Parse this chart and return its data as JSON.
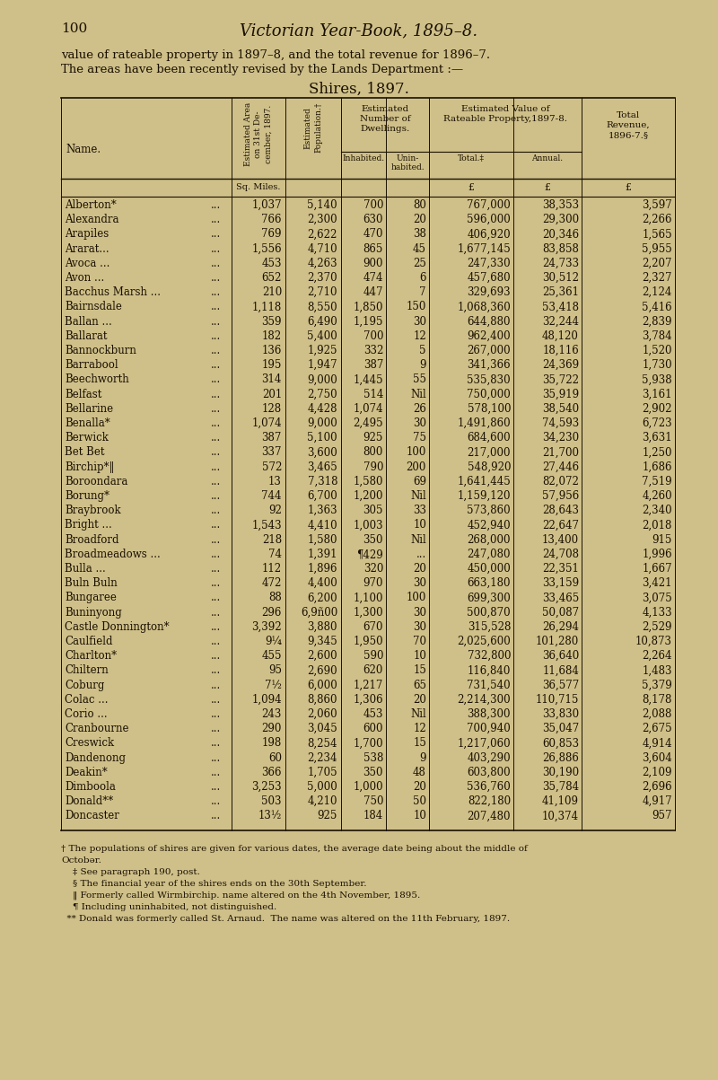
{
  "page_num": "100",
  "page_title": "Victorian Year-Book, 1895–8.",
  "intro_line1": "value of rateable property in 1897–8, and the total revenue for 1896–7.",
  "intro_line2": "The areas have been recently revised by the Lands Department :—",
  "table_title": "Shires, 1897.",
  "bg_color": "#cfc08a",
  "text_color": "#1a1000",
  "line_color": "#1a1000",
  "rows": [
    [
      "Alberton*",
      "...",
      "1,037",
      "5,140",
      "700",
      "80",
      "767,000",
      "38,353",
      "3,597"
    ],
    [
      "Alexandra",
      "...",
      "766",
      "2,300",
      "630",
      "20",
      "596,000",
      "29,300",
      "2,266"
    ],
    [
      "Arapiles",
      "...",
      "769",
      "2,622",
      "470",
      "38",
      "406,920",
      "20,346",
      "1,565"
    ],
    [
      "Ararat...",
      "...",
      "1,556",
      "4,710",
      "865",
      "45",
      "1,677,145",
      "83,858",
      "5,955"
    ],
    [
      "Avoca ...",
      "...",
      "453",
      "4,263",
      "900",
      "25",
      "247,330",
      "24,733",
      "2,207"
    ],
    [
      "Avon ...",
      "...",
      "652",
      "2,370",
      "474",
      "6",
      "457,680",
      "30,512",
      "2,327"
    ],
    [
      "Bacchus Marsh ...",
      "...",
      "210",
      "2,710",
      "447",
      "7",
      "329,693",
      "25,361",
      "2,124"
    ],
    [
      "Bairnsdale",
      "...",
      "1,118",
      "8,550",
      "1,850",
      "150",
      "1,068,360",
      "53,418",
      "5,416"
    ],
    [
      "Ballan ...",
      "...",
      "359",
      "6,490",
      "1,195",
      "30",
      "644,880",
      "32,244",
      "2,839"
    ],
    [
      "Ballarat",
      "...",
      "182",
      "5,400",
      "700",
      "12",
      "962,400",
      "48,120",
      "3,784"
    ],
    [
      "Bannockburn",
      "...",
      "136",
      "1,925",
      "332",
      "5",
      "267,000",
      "18,116",
      "1,520"
    ],
    [
      "Barrabool",
      "...",
      "195",
      "1,947",
      "387",
      "9",
      "341,366",
      "24,369",
      "1,730"
    ],
    [
      "Beechworth",
      "...",
      "314",
      "9,000",
      "1,445",
      "55",
      "535,830",
      "35,722",
      "5,938"
    ],
    [
      "Belfast",
      "...",
      "201",
      "2,750",
      "514",
      "Nil",
      "750,000",
      "35,919",
      "3,161"
    ],
    [
      "Bellarine",
      "...",
      "128",
      "4,428",
      "1,074",
      "26",
      "578,100",
      "38,540",
      "2,902"
    ],
    [
      "Benalla*",
      "...",
      "1,074",
      "9,000",
      "2,495",
      "30",
      "1,491,860",
      "74,593",
      "6,723"
    ],
    [
      "Berwick",
      "...",
      "387",
      "5,100",
      "925",
      "75",
      "684,600",
      "34,230",
      "3,631"
    ],
    [
      "Bet Bet",
      "...",
      "337",
      "3,600",
      "800",
      "100",
      "217,000",
      "21,700",
      "1,250"
    ],
    [
      "Birchip*‖",
      "...",
      "572",
      "3,465",
      "790",
      "200",
      "548,920",
      "27,446",
      "1,686"
    ],
    [
      "Boroondara",
      "...",
      "13",
      "7,318",
      "1,580",
      "69",
      "1,641,445",
      "82,072",
      "7,519"
    ],
    [
      "Borung*",
      "...",
      "744",
      "6,700",
      "1,200",
      "Nil",
      "1,159,120",
      "57,956",
      "4,260"
    ],
    [
      "Braybrook",
      "...",
      "92",
      "1,363",
      "305",
      "33",
      "573,860",
      "28,643",
      "2,340"
    ],
    [
      "Bright ...",
      "...",
      "1,543",
      "4,410",
      "1,003",
      "10",
      "452,940",
      "22,647",
      "2,018"
    ],
    [
      "Broadford",
      "...",
      "218",
      "1,580",
      "350",
      "Nil",
      "268,000",
      "13,400",
      "915"
    ],
    [
      "Broadmeadows ...",
      "...",
      "74",
      "1,391",
      "¶429",
      "...",
      "247,080",
      "24,708",
      "1,996"
    ],
    [
      "Bulla ...",
      "...",
      "112",
      "1,896",
      "320",
      "20",
      "450,000",
      "22,351",
      "1,667"
    ],
    [
      "Buln Buln",
      "...",
      "472",
      "4,400",
      "970",
      "30",
      "663,180",
      "33,159",
      "3,421"
    ],
    [
      "Bungaree",
      "...",
      "88",
      "6,200",
      "1,100",
      "100",
      "699,300",
      "33,465",
      "3,075"
    ],
    [
      "Buninyong",
      "...",
      "296",
      "6,9ñ00",
      "1,300",
      "30",
      "500,870",
      "50,087",
      "4,133"
    ],
    [
      "Castle Donnington*",
      "...",
      "3,392",
      "3,880",
      "670",
      "30",
      "315,528",
      "26,294",
      "2,529"
    ],
    [
      "Caulfield",
      "...",
      "9¼",
      "9,345",
      "1,950",
      "70",
      "2,025,600",
      "101,280",
      "10,873"
    ],
    [
      "Charlton*",
      "...",
      "455",
      "2,600",
      "590",
      "10",
      "732,800",
      "36,640",
      "2,264"
    ],
    [
      "Chiltern",
      "...",
      "95",
      "2,690",
      "620",
      "15",
      "116,840",
      "11,684",
      "1,483"
    ],
    [
      "Coburg",
      "...",
      "7½",
      "6,000",
      "1,217",
      "65",
      "731,540",
      "36,577",
      "5,379"
    ],
    [
      "Colac ...",
      "...",
      "1,094",
      "8,860",
      "1,306",
      "20",
      "2,214,300",
      "110,715",
      "8,178"
    ],
    [
      "Corio ...",
      "...",
      "243",
      "2,060",
      "453",
      "Nil",
      "388,300",
      "33,830",
      "2,088"
    ],
    [
      "Cranbourne",
      "...",
      "290",
      "3,045",
      "600",
      "12",
      "700,940",
      "35,047",
      "2,675"
    ],
    [
      "Creswick",
      "...",
      "198",
      "8,254",
      "1,700",
      "15",
      "1,217,060",
      "60,853",
      "4,914"
    ],
    [
      "Dandenong",
      "...",
      "60",
      "2,234",
      "538",
      "9",
      "403,290",
      "26,886",
      "3,604"
    ],
    [
      "Deakin*",
      "...",
      "366",
      "1,705",
      "350",
      "48",
      "603,800",
      "30,190",
      "2,109"
    ],
    [
      "Dimboola",
      "...",
      "3,253",
      "5,000",
      "1,000",
      "20",
      "536,760",
      "35,784",
      "2,696"
    ],
    [
      "Donald**",
      "...",
      "503",
      "4,210",
      "750",
      "50",
      "822,180",
      "41,109",
      "4,917"
    ],
    [
      "Doncaster",
      "...",
      "13½",
      "925",
      "184",
      "10",
      "207,480",
      "10,374",
      "957"
    ]
  ],
  "footnotes": [
    "† The populations of shires are given for various dates, the average date being about the middle of",
    "Octobər.",
    "    ‡ See paragraph 190, post.",
    "    § The financial year of the shires ends on the 30th September.",
    "    ‖ Formerly called Wirmbirchip. name altered on the 4th November, 1895.",
    "    ¶ Including uninhabited, not distinguished.",
    "  ** Donald was formerly called St. Arnaud.  The name was altered on the 11th February, 1897."
  ]
}
